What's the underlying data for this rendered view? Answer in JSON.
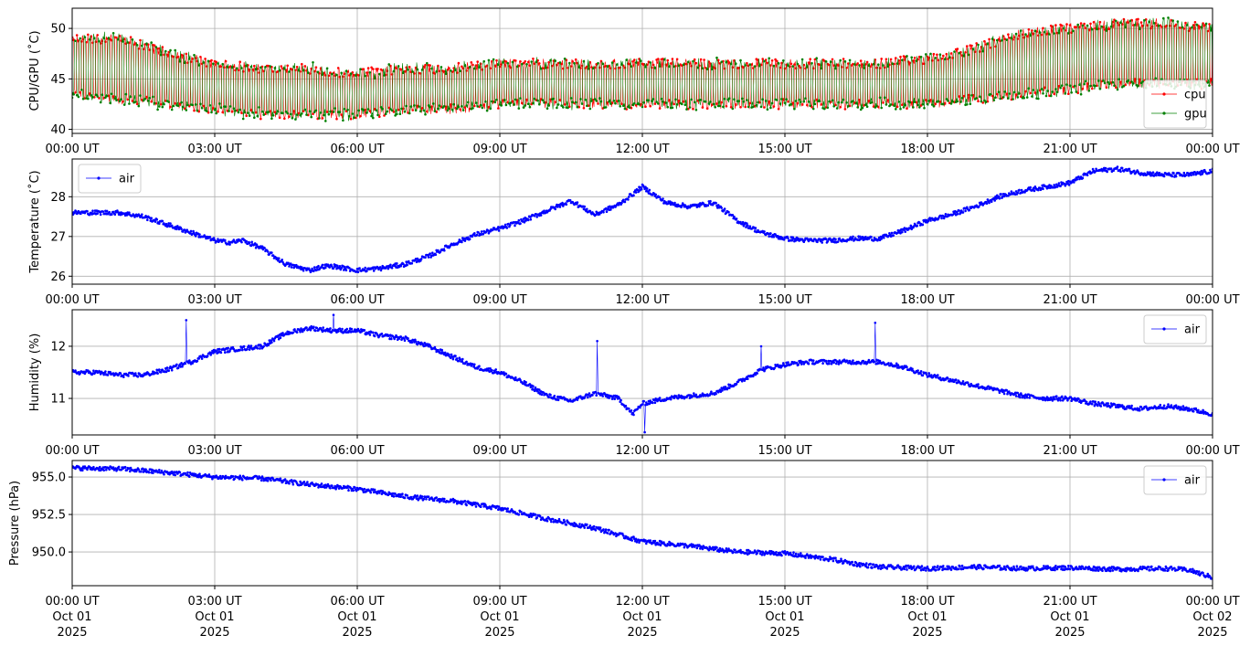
{
  "x_axis": {
    "tick_labels": [
      "00:00 UT",
      "03:00 UT",
      "06:00 UT",
      "09:00 UT",
      "12:00 UT",
      "15:00 UT",
      "18:00 UT",
      "21:00 UT",
      "00:00 UT"
    ],
    "bottom_date_lines": [
      [
        "Oct 01",
        "2025"
      ],
      [
        "Oct 01",
        "2025"
      ],
      [
        "Oct 01",
        "2025"
      ],
      [
        "Oct 01",
        "2025"
      ],
      [
        "Oct 01",
        "2025"
      ],
      [
        "Oct 01",
        "2025"
      ],
      [
        "Oct 01",
        "2025"
      ],
      [
        "Oct 01",
        "2025"
      ],
      [
        "Oct 02",
        "2025"
      ]
    ]
  },
  "colors": {
    "cpu": "#ff0000",
    "gpu": "#008000",
    "air": "#0000ff",
    "grid": "#b0b0b0"
  },
  "chart_data": [
    {
      "type": "line",
      "ylabel": "CPU/GPU (˚C)",
      "xlim_hours": [
        0,
        24
      ],
      "ylim": [
        39.6,
        52
      ],
      "yticks": [
        40,
        45,
        50
      ],
      "ytick_labels": [
        "40",
        "45",
        "50"
      ],
      "grid": true,
      "legend": "lower-right",
      "series": [
        {
          "name": "cpu",
          "x": [
            0,
            1,
            2,
            3,
            4,
            5,
            6,
            7,
            8,
            9,
            10,
            11,
            12,
            13,
            14,
            15,
            16,
            17,
            18,
            19,
            20,
            21,
            22,
            23,
            24
          ],
          "y_low": [
            43,
            42.5,
            42,
            41.5,
            41,
            41,
            41,
            41.5,
            41.5,
            42,
            42,
            42,
            42,
            42,
            42,
            42,
            42,
            42,
            42,
            42.5,
            43,
            43.5,
            44,
            44,
            44
          ],
          "y_high": [
            49.5,
            49.5,
            48,
            47,
            46.5,
            46.5,
            46,
            46.5,
            46.5,
            47,
            47,
            47,
            47,
            47,
            47,
            47,
            47,
            47,
            47.5,
            48.5,
            50,
            50.5,
            51,
            51,
            50.5
          ]
        },
        {
          "name": "gpu",
          "x": [
            0,
            1,
            2,
            3,
            4,
            5,
            6,
            7,
            8,
            9,
            10,
            11,
            12,
            13,
            14,
            15,
            16,
            17,
            18,
            19,
            20,
            21,
            22,
            23,
            24
          ],
          "y_low": [
            43,
            42.5,
            42,
            41.5,
            41,
            41,
            41,
            41.5,
            41.5,
            42,
            42,
            42,
            42,
            42,
            42,
            42,
            42,
            42,
            42,
            42.5,
            43,
            43.5,
            44,
            44,
            44
          ],
          "y_high": [
            49.5,
            49.5,
            48,
            47,
            46.5,
            46.5,
            46,
            46.5,
            46.5,
            47,
            47,
            47,
            47,
            47,
            47,
            47,
            47,
            47,
            47.5,
            48.5,
            50,
            50.5,
            51,
            51,
            50.5
          ]
        }
      ]
    },
    {
      "type": "line",
      "ylabel": "Temperature (˚C)",
      "xlim_hours": [
        0,
        24
      ],
      "ylim": [
        25.8,
        28.95
      ],
      "yticks": [
        26,
        27,
        28
      ],
      "ytick_labels": [
        "26",
        "27",
        "28"
      ],
      "grid": true,
      "legend": "upper-left",
      "series": [
        {
          "name": "air",
          "x": [
            0,
            0.5,
            1,
            1.5,
            2,
            2.5,
            3,
            3.3,
            3.6,
            4,
            4.5,
            5,
            5.3,
            5.5,
            6,
            6.5,
            7,
            7.5,
            8,
            8.5,
            9,
            9.5,
            10,
            10.5,
            11,
            11.5,
            12,
            12.5,
            13,
            13.5,
            14,
            14.5,
            15,
            15.5,
            16,
            16.5,
            17,
            17.5,
            18,
            18.5,
            19,
            19.5,
            20,
            20.5,
            21,
            21.5,
            22,
            22.5,
            23,
            23.5,
            24
          ],
          "y": [
            27.6,
            27.6,
            27.6,
            27.5,
            27.3,
            27.1,
            26.9,
            26.85,
            26.9,
            26.7,
            26.3,
            26.15,
            26.25,
            26.25,
            26.15,
            26.2,
            26.3,
            26.5,
            26.8,
            27.05,
            27.2,
            27.4,
            27.65,
            27.9,
            27.55,
            27.8,
            28.25,
            27.85,
            27.75,
            27.85,
            27.4,
            27.1,
            26.95,
            26.9,
            26.9,
            26.95,
            26.95,
            27.15,
            27.4,
            27.55,
            27.75,
            28.0,
            28.15,
            28.25,
            28.35,
            28.65,
            28.7,
            28.6,
            28.55,
            28.55,
            28.65
          ]
        }
      ]
    },
    {
      "type": "line",
      "ylabel": "Humidity (%)",
      "xlim_hours": [
        0,
        24
      ],
      "ylim": [
        10.3,
        12.7
      ],
      "yticks": [
        11,
        12
      ],
      "ytick_labels": [
        "11",
        "12"
      ],
      "grid": true,
      "legend": "upper-right",
      "series": [
        {
          "name": "air",
          "x": [
            0,
            0.5,
            1,
            1.5,
            2,
            2.5,
            3,
            3.5,
            4,
            4.5,
            5,
            5.5,
            6,
            6.5,
            7,
            7.5,
            8,
            8.5,
            9,
            9.5,
            10,
            10.5,
            11,
            11.5,
            11.8,
            12,
            12.5,
            13,
            13.5,
            14,
            14.5,
            15,
            15.5,
            16,
            16.5,
            17,
            17.5,
            18,
            18.5,
            19,
            19.5,
            20,
            20.5,
            21,
            21.5,
            22,
            22.5,
            23,
            23.5,
            24
          ],
          "y": [
            11.5,
            11.5,
            11.45,
            11.45,
            11.55,
            11.7,
            11.9,
            11.95,
            12.0,
            12.25,
            12.35,
            12.3,
            12.3,
            12.2,
            12.15,
            12.0,
            11.8,
            11.6,
            11.5,
            11.3,
            11.05,
            10.95,
            11.1,
            11.0,
            10.7,
            10.9,
            11.0,
            11.05,
            11.1,
            11.3,
            11.55,
            11.65,
            11.7,
            11.7,
            11.7,
            11.7,
            11.6,
            11.45,
            11.35,
            11.25,
            11.15,
            11.05,
            11.0,
            11.0,
            10.9,
            10.85,
            10.8,
            10.85,
            10.8,
            10.7
          ],
          "spikes": [
            [
              2.4,
              12.5
            ],
            [
              5.5,
              12.6
            ],
            [
              11.05,
              12.1
            ],
            [
              12.05,
              10.35
            ],
            [
              14.5,
              12.0
            ],
            [
              16.9,
              12.45
            ]
          ]
        }
      ]
    },
    {
      "type": "line",
      "ylabel": "Pressure (hPa)",
      "xlim_hours": [
        0,
        24
      ],
      "ylim": [
        947.75,
        956.1
      ],
      "yticks": [
        950.0,
        952.5,
        955.0
      ],
      "ytick_labels": [
        "950.0",
        "952.5",
        "955.0"
      ],
      "grid": true,
      "legend": "upper-right",
      "series": [
        {
          "name": "air",
          "x": [
            0,
            1,
            2,
            3,
            4,
            5,
            6,
            7,
            8,
            9,
            10,
            11,
            12,
            13,
            14,
            15,
            16,
            16.5,
            17,
            18,
            19,
            19.5,
            20,
            21,
            22,
            23,
            23.5,
            24
          ],
          "y": [
            955.6,
            955.55,
            955.3,
            955.0,
            954.9,
            954.5,
            954.2,
            953.7,
            953.4,
            952.9,
            952.2,
            951.6,
            950.7,
            950.4,
            950.0,
            949.9,
            949.5,
            949.2,
            949.0,
            948.9,
            949.0,
            948.95,
            948.9,
            948.95,
            948.85,
            948.9,
            948.8,
            948.3
          ]
        }
      ]
    }
  ]
}
